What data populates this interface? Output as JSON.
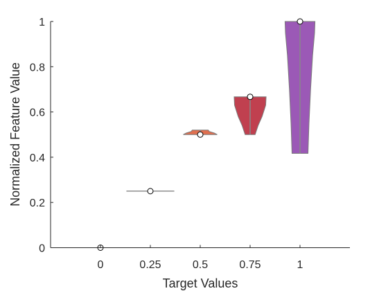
{
  "chart_data": {
    "type": "violin",
    "xlabel": "Target Values",
    "ylabel": "Normalized Feature Value",
    "categories": [
      "0",
      "0.25",
      "0.5",
      "0.75",
      "1"
    ],
    "x_values": [
      0,
      0.25,
      0.5,
      0.75,
      1
    ],
    "xlim": [
      -0.25,
      1.25
    ],
    "ylim": [
      0,
      1
    ],
    "y_ticks": [
      "0",
      "0.2",
      "0.4",
      "0.6",
      "0.8",
      "1"
    ],
    "grid": false,
    "series": [
      {
        "x": 0,
        "color": "#eeeeee",
        "median": 0,
        "profile": [
          [
            0,
            0.12
          ]
        ]
      },
      {
        "x": 0.25,
        "color": "#eeeeee",
        "median": 0.25,
        "profile": [
          [
            0.25,
            0.12
          ]
        ]
      },
      {
        "x": 0.5,
        "color": "#e07050",
        "median": 0.5,
        "profile": [
          [
            0.5,
            0.085
          ],
          [
            0.507,
            0.07
          ],
          [
            0.514,
            0.045
          ],
          [
            0.52,
            0.04
          ]
        ]
      },
      {
        "x": 0.75,
        "color": "#c0404f",
        "median": 0.667,
        "profile": [
          [
            0.5,
            0.025
          ],
          [
            0.54,
            0.04
          ],
          [
            0.58,
            0.06
          ],
          [
            0.63,
            0.078
          ],
          [
            0.667,
            0.08
          ]
        ]
      },
      {
        "x": 1,
        "color": "#9b59b6",
        "median": 1,
        "profile": [
          [
            0.417,
            0.04
          ],
          [
            0.55,
            0.045
          ],
          [
            0.7,
            0.053
          ],
          [
            0.85,
            0.063
          ],
          [
            0.95,
            0.073
          ],
          [
            1.0,
            0.075
          ]
        ]
      }
    ]
  }
}
